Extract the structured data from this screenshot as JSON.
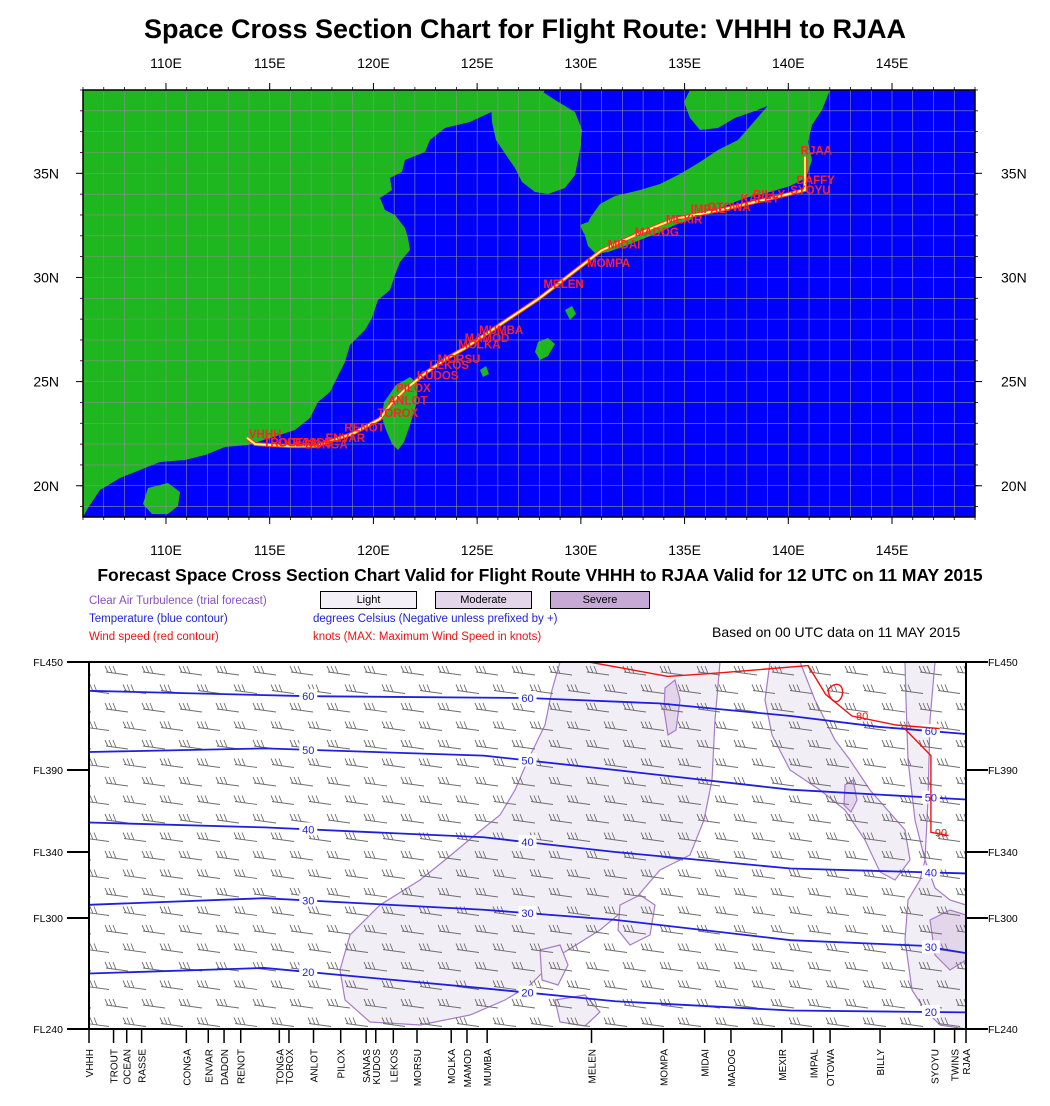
{
  "title": "Space Cross Section Chart for Flight Route: VHHH to RJAA",
  "subtitle": "Forecast Space Cross Section Chart Valid for Flight Route VHHH to RJAA Valid for 12 UTC on 11 MAY 2015",
  "based_on": "Based on 00 UTC data on 11 MAY 2015",
  "legend": {
    "turbulence": "Clear Air Turbulence (trial forecast)",
    "temperature": "Temperature (blue contour)",
    "wind": "Wind speed (red contour)",
    "temp_units": "degrees Celsius (Negative unless prefixed by +)",
    "wind_units": "knots  (MAX: Maximum Wind Speed in knots)",
    "levels": [
      "Light",
      "Moderate",
      "Severe"
    ],
    "level_colors": [
      "#f4f0f7",
      "#e3d6ea",
      "#c7a9d6"
    ]
  },
  "colors": {
    "ocean": "#0000ff",
    "land": "#1fb71f",
    "route": "#ffff66",
    "waypoint": "#ff2222",
    "temp": "#1f1fdd",
    "wind": "#ee1111",
    "cat": "#a77bc8"
  },
  "chart_data": [
    {
      "type": "map",
      "title": "Space Cross Section Chart for Flight Route: VHHH to RJAA",
      "lon_range": [
        106,
        149
      ],
      "lat_range": [
        18.5,
        39
      ],
      "lon_ticks": [
        "110E",
        "115E",
        "120E",
        "125E",
        "130E",
        "135E",
        "140E",
        "145E"
      ],
      "lat_ticks": [
        "20N",
        "25N",
        "30N",
        "35N"
      ],
      "route": [
        [
          113.9,
          22.3
        ],
        [
          114.3,
          22.0
        ],
        [
          116.0,
          21.9
        ],
        [
          117.2,
          21.9
        ],
        [
          119.0,
          22.5
        ],
        [
          120.3,
          23.2
        ],
        [
          120.9,
          24.0
        ],
        [
          121.5,
          24.6
        ],
        [
          122.5,
          25.4
        ],
        [
          123.5,
          26.1
        ],
        [
          124.4,
          26.6
        ],
        [
          125.0,
          27.0
        ],
        [
          128.0,
          29.0
        ],
        [
          131.0,
          31.3
        ],
        [
          133.0,
          32.2
        ],
        [
          134.5,
          32.8
        ],
        [
          137.0,
          33.3
        ],
        [
          140.0,
          34.0
        ],
        [
          140.8,
          34.2
        ],
        [
          140.8,
          35.8
        ]
      ],
      "waypoints": [
        {
          "name": "VHHH",
          "lon": 113.9,
          "lat": 22.2
        },
        {
          "name": "TROUT",
          "lon": 114.6,
          "lat": 21.8
        },
        {
          "name": "OCEAN",
          "lon": 115.3,
          "lat": 21.8
        },
        {
          "name": "RASSE",
          "lon": 116.0,
          "lat": 21.8
        },
        {
          "name": "ENVAR",
          "lon": 117.6,
          "lat": 22.0
        },
        {
          "name": "DONGA",
          "lon": 116.6,
          "lat": 21.7
        },
        {
          "name": "RENOT",
          "lon": 118.5,
          "lat": 22.5
        },
        {
          "name": "TOROX",
          "lon": 120.1,
          "lat": 23.2
        },
        {
          "name": "ANLOT",
          "lon": 120.6,
          "lat": 23.8
        },
        {
          "name": "PILOX",
          "lon": 121.0,
          "lat": 24.4
        },
        {
          "name": "KUDOS",
          "lon": 122.0,
          "lat": 25.0
        },
        {
          "name": "LEKOS",
          "lon": 122.6,
          "lat": 25.5
        },
        {
          "name": "MORSU",
          "lon": 123.0,
          "lat": 25.8
        },
        {
          "name": "MOLKA",
          "lon": 124.0,
          "lat": 26.5
        },
        {
          "name": "MAMOD",
          "lon": 124.3,
          "lat": 26.8
        },
        {
          "name": "MUMBA",
          "lon": 125.0,
          "lat": 27.2
        },
        {
          "name": "MELEN",
          "lon": 128.1,
          "lat": 29.4
        },
        {
          "name": "MOMPA",
          "lon": 130.2,
          "lat": 30.4
        },
        {
          "name": "MIDAI",
          "lon": 131.2,
          "lat": 31.3
        },
        {
          "name": "MADOG",
          "lon": 132.5,
          "lat": 31.9
        },
        {
          "name": "MEXIR",
          "lon": 134.0,
          "lat": 32.5
        },
        {
          "name": "IMPAL",
          "lon": 135.2,
          "lat": 33.0
        },
        {
          "name": "OTOWA",
          "lon": 136.0,
          "lat": 33.1
        },
        {
          "name": "KALEY",
          "lon": 137.6,
          "lat": 33.5
        },
        {
          "name": "BILLY",
          "lon": 138.2,
          "lat": 33.7
        },
        {
          "name": "SYOYU",
          "lon": 140.0,
          "lat": 33.9
        },
        {
          "name": "DAFFY",
          "lon": 140.3,
          "lat": 34.4
        },
        {
          "name": "RJAA",
          "lon": 140.5,
          "lat": 35.8
        }
      ]
    },
    {
      "type": "cross-section",
      "title": "Forecast Space Cross Section Chart Valid for Flight Route VHHH to RJAA Valid for 12 UTC on 11 MAY 2015",
      "y_levels": [
        "FL450",
        "FL390",
        "FL340",
        "FL300",
        "FL240"
      ],
      "y_values": [
        450,
        390,
        340,
        300,
        240
      ],
      "x_waypoints": [
        {
          "name": "VHHH",
          "pos": 0.0
        },
        {
          "name": "TROUT",
          "pos": 0.028
        },
        {
          "name": "OCEAN",
          "pos": 0.043
        },
        {
          "name": "RASSE",
          "pos": 0.06
        },
        {
          "name": "CONGA",
          "pos": 0.111
        },
        {
          "name": "ENVAR",
          "pos": 0.136
        },
        {
          "name": "DADON",
          "pos": 0.154
        },
        {
          "name": "RENOT",
          "pos": 0.173
        },
        {
          "name": "TONGA",
          "pos": 0.217
        },
        {
          "name": "TOROX",
          "pos": 0.228
        },
        {
          "name": "ANLOT",
          "pos": 0.256
        },
        {
          "name": "PILOX",
          "pos": 0.287
        },
        {
          "name": "SANAS",
          "pos": 0.316
        },
        {
          "name": "KUDOS",
          "pos": 0.327
        },
        {
          "name": "LEKOS",
          "pos": 0.347
        },
        {
          "name": "MORSU",
          "pos": 0.374
        },
        {
          "name": "MOLKA",
          "pos": 0.413
        },
        {
          "name": "MAMOD",
          "pos": 0.431
        },
        {
          "name": "MUMBA",
          "pos": 0.454
        },
        {
          "name": "MELEN",
          "pos": 0.573
        },
        {
          "name": "MOMPA",
          "pos": 0.655
        },
        {
          "name": "MIDAI",
          "pos": 0.702
        },
        {
          "name": "MADOG",
          "pos": 0.732
        },
        {
          "name": "MEXIR",
          "pos": 0.79
        },
        {
          "name": "IMPAL",
          "pos": 0.826
        },
        {
          "name": "OTOWA",
          "pos": 0.845
        },
        {
          "name": "BILLY",
          "pos": 0.902
        },
        {
          "name": "SYOYU",
          "pos": 0.964
        },
        {
          "name": "TWINS",
          "pos": 0.987
        },
        {
          "name": "RJAA",
          "pos": 1.0
        }
      ],
      "temperature_contours": [
        {
          "label": "60",
          "points": [
            [
              0,
              434
            ],
            [
              0.25,
              431
            ],
            [
              0.5,
              430
            ],
            [
              0.65,
              427
            ],
            [
              0.8,
              420
            ],
            [
              0.9,
              414
            ],
            [
              1.0,
              410
            ]
          ]
        },
        {
          "label": "50",
          "points": [
            [
              0,
              400
            ],
            [
              0.2,
              402
            ],
            [
              0.45,
              398
            ],
            [
              0.6,
              390
            ],
            [
              0.8,
              378
            ],
            [
              1.0,
              372
            ]
          ]
        },
        {
          "label": "40",
          "points": [
            [
              0,
              358
            ],
            [
              0.2,
              355
            ],
            [
              0.45,
              349
            ],
            [
              0.6,
              340
            ],
            [
              0.8,
              330
            ],
            [
              1.0,
              327
            ]
          ]
        },
        {
          "label": "30",
          "points": [
            [
              0,
              308
            ],
            [
              0.2,
              312
            ],
            [
              0.45,
              305
            ],
            [
              0.6,
              299
            ],
            [
              0.8,
              288
            ],
            [
              0.95,
              285
            ],
            [
              1.0,
              281
            ]
          ]
        },
        {
          "label": "20",
          "points": [
            [
              0,
              270
            ],
            [
              0.2,
              273
            ],
            [
              0.45,
              262
            ],
            [
              0.6,
              255
            ],
            [
              0.8,
              250
            ],
            [
              1.0,
              249
            ]
          ]
        }
      ],
      "wind_contours": [
        {
          "label": "80",
          "points": [
            [
              0.57,
              450
            ],
            [
              0.66,
              442
            ],
            [
              0.72,
              444
            ],
            [
              0.82,
              448
            ],
            [
              0.84,
              432
            ],
            [
              0.87,
              420
            ],
            [
              0.92,
              415
            ],
            [
              0.97,
              413
            ]
          ]
        },
        {
          "label": "90",
          "points": [
            [
              0.93,
              413
            ],
            [
              0.96,
              398
            ],
            [
              0.96,
              375
            ],
            [
              0.96,
              352
            ],
            [
              0.98,
              350
            ]
          ]
        }
      ]
    }
  ]
}
